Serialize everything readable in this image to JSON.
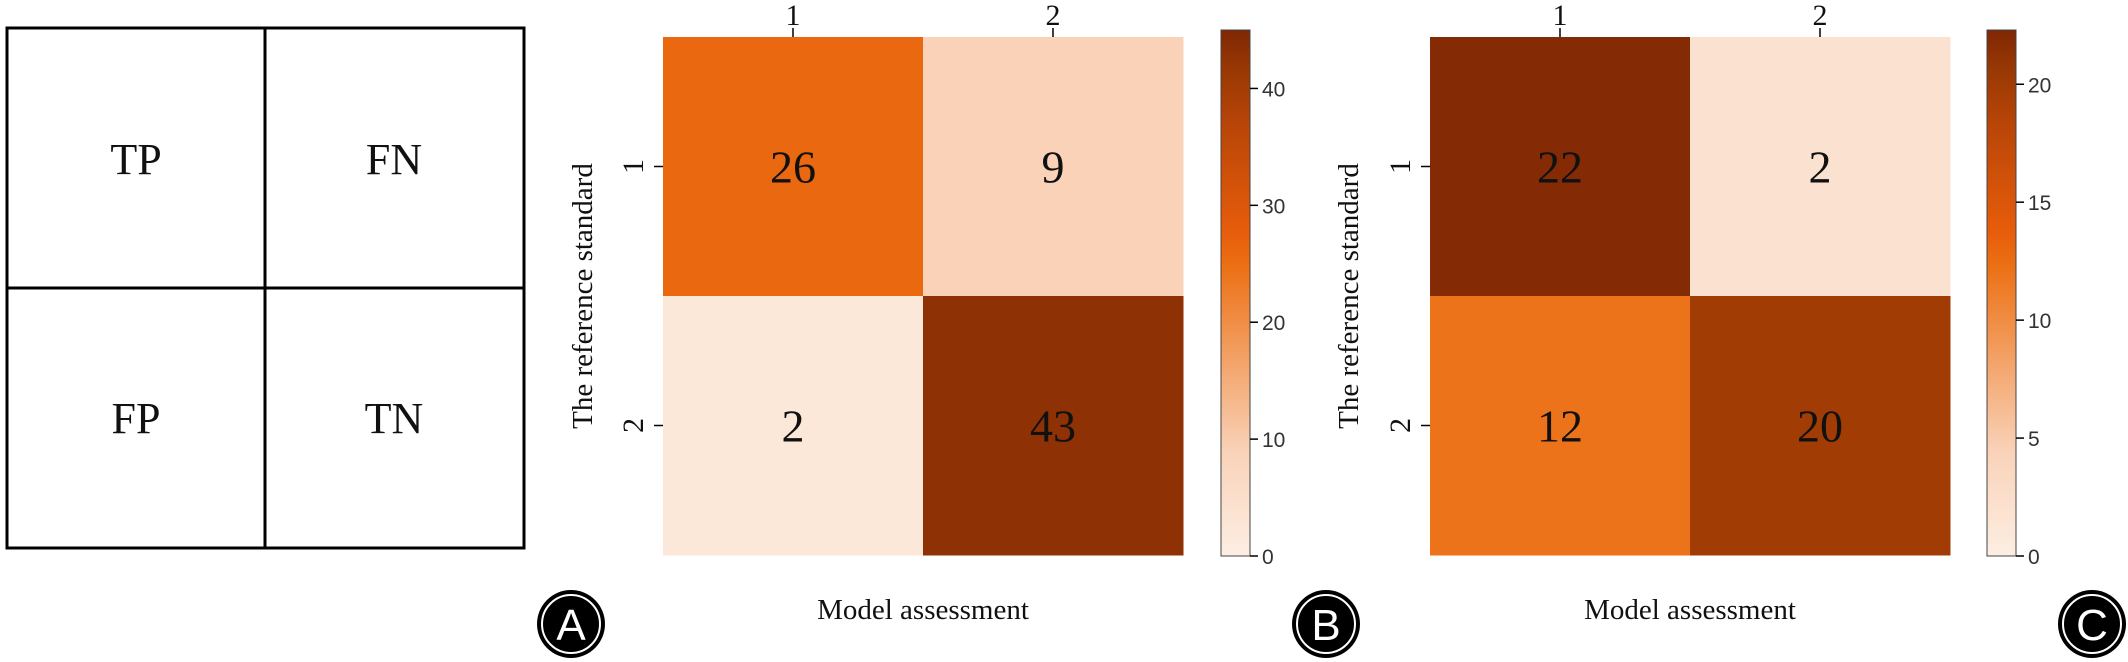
{
  "panel_a": {
    "cells": [
      "TP",
      "FN",
      "FP",
      "TN"
    ],
    "label": "A"
  },
  "colors": {
    "scale_0": "#fdeee3",
    "scale_1": "#f9d2b8",
    "scale_2": "#ec7014",
    "scale_3": "#e65c0a",
    "scale_4": "#b94508",
    "scale_5": "#9a3904",
    "scale_6": "#7f2704",
    "panel_label_bg": "#000000",
    "panel_label_fg": "#ffffff",
    "value_text": "#111111"
  },
  "chart_data": [
    {
      "type": "heatmap",
      "panel_label": "B",
      "title": "",
      "xlabel": "Model assessment",
      "ylabel": "The reference standard",
      "x_categories": [
        "1",
        "2"
      ],
      "y_categories": [
        "1",
        "2"
      ],
      "values": [
        [
          26,
          9
        ],
        [
          2,
          43
        ]
      ],
      "colorbar": {
        "min": 0,
        "max": 45,
        "ticks": [
          0,
          10,
          20,
          30,
          40
        ],
        "tick_labels": [
          "0",
          "10",
          "20",
          "30",
          "40"
        ]
      }
    },
    {
      "type": "heatmap",
      "panel_label": "C",
      "title": "",
      "xlabel": "Model assessment",
      "ylabel": "The reference standard",
      "x_categories": [
        "1",
        "2"
      ],
      "y_categories": [
        "1",
        "2"
      ],
      "values": [
        [
          22,
          2
        ],
        [
          12,
          20
        ]
      ],
      "colorbar": {
        "min": 0,
        "max": 22.3,
        "ticks": [
          0,
          5,
          10,
          15,
          20
        ],
        "tick_labels": [
          "0",
          "5",
          "10",
          "15",
          "20"
        ]
      }
    }
  ]
}
